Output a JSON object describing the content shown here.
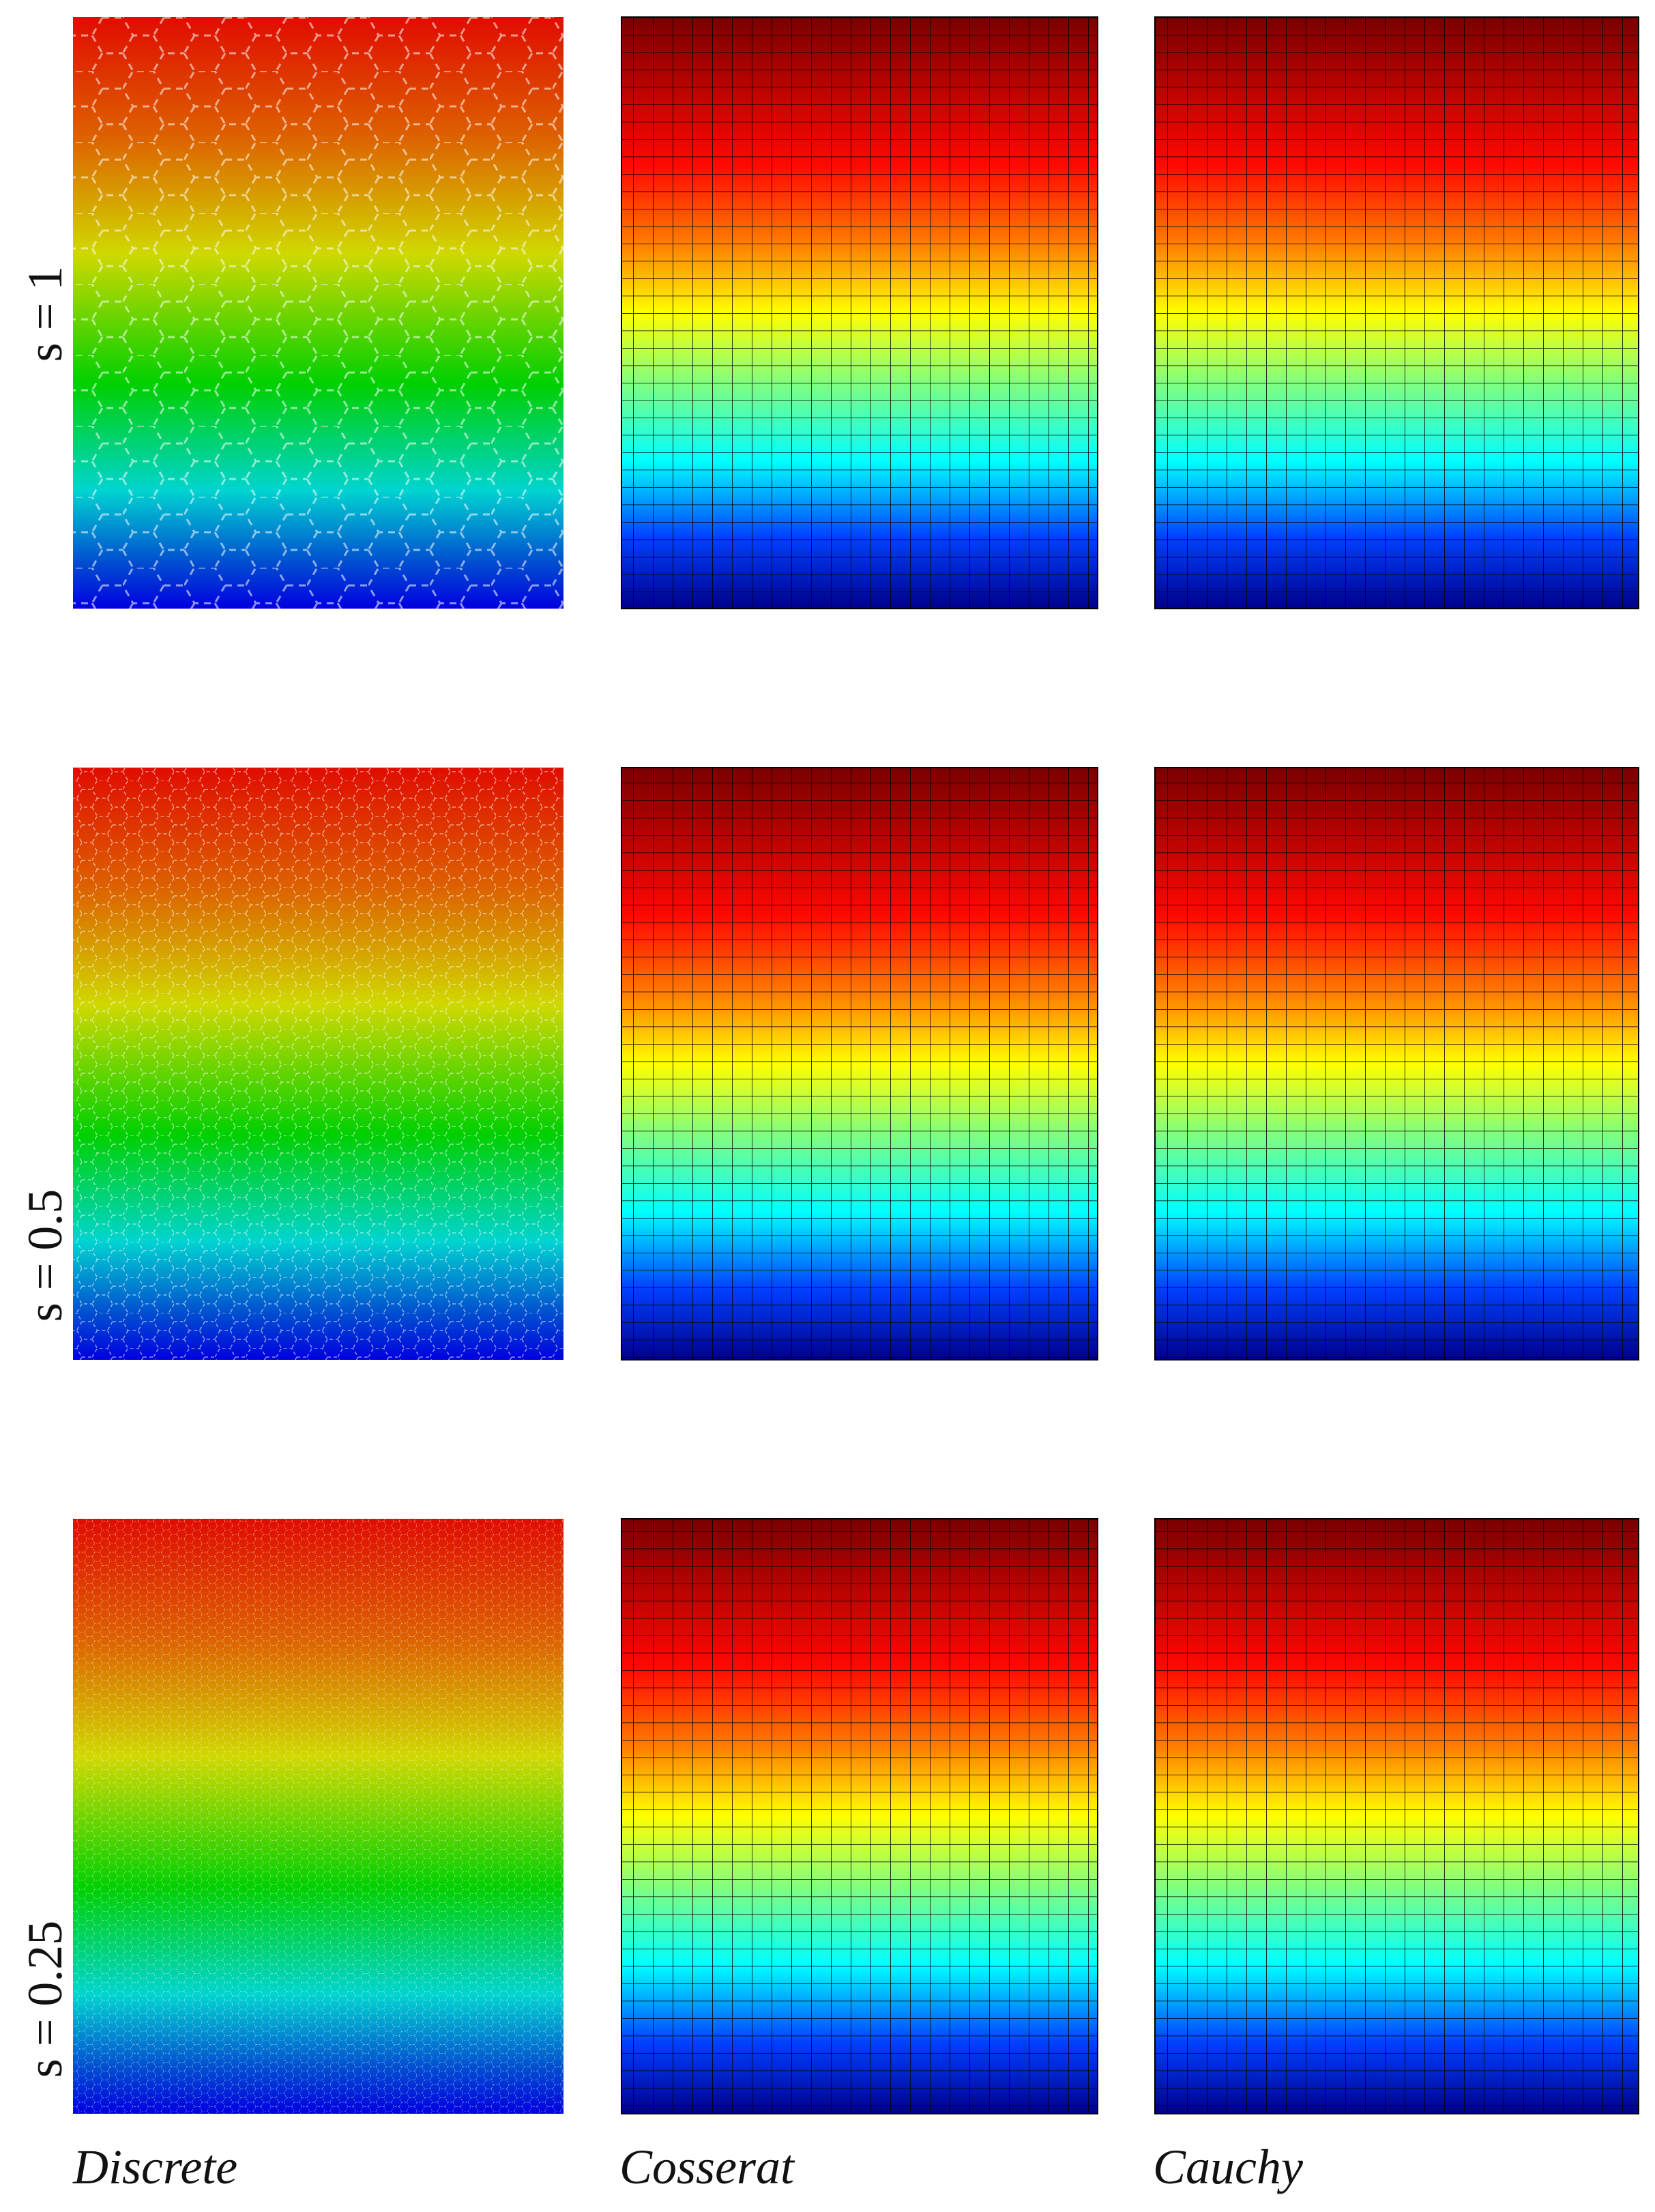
{
  "rows": {
    "labels": [
      "s = 1",
      "s = 0.5",
      "s = 0.25"
    ]
  },
  "columns": {
    "labels": [
      "Discrete",
      "Cosserat",
      "Cauchy"
    ]
  }
}
